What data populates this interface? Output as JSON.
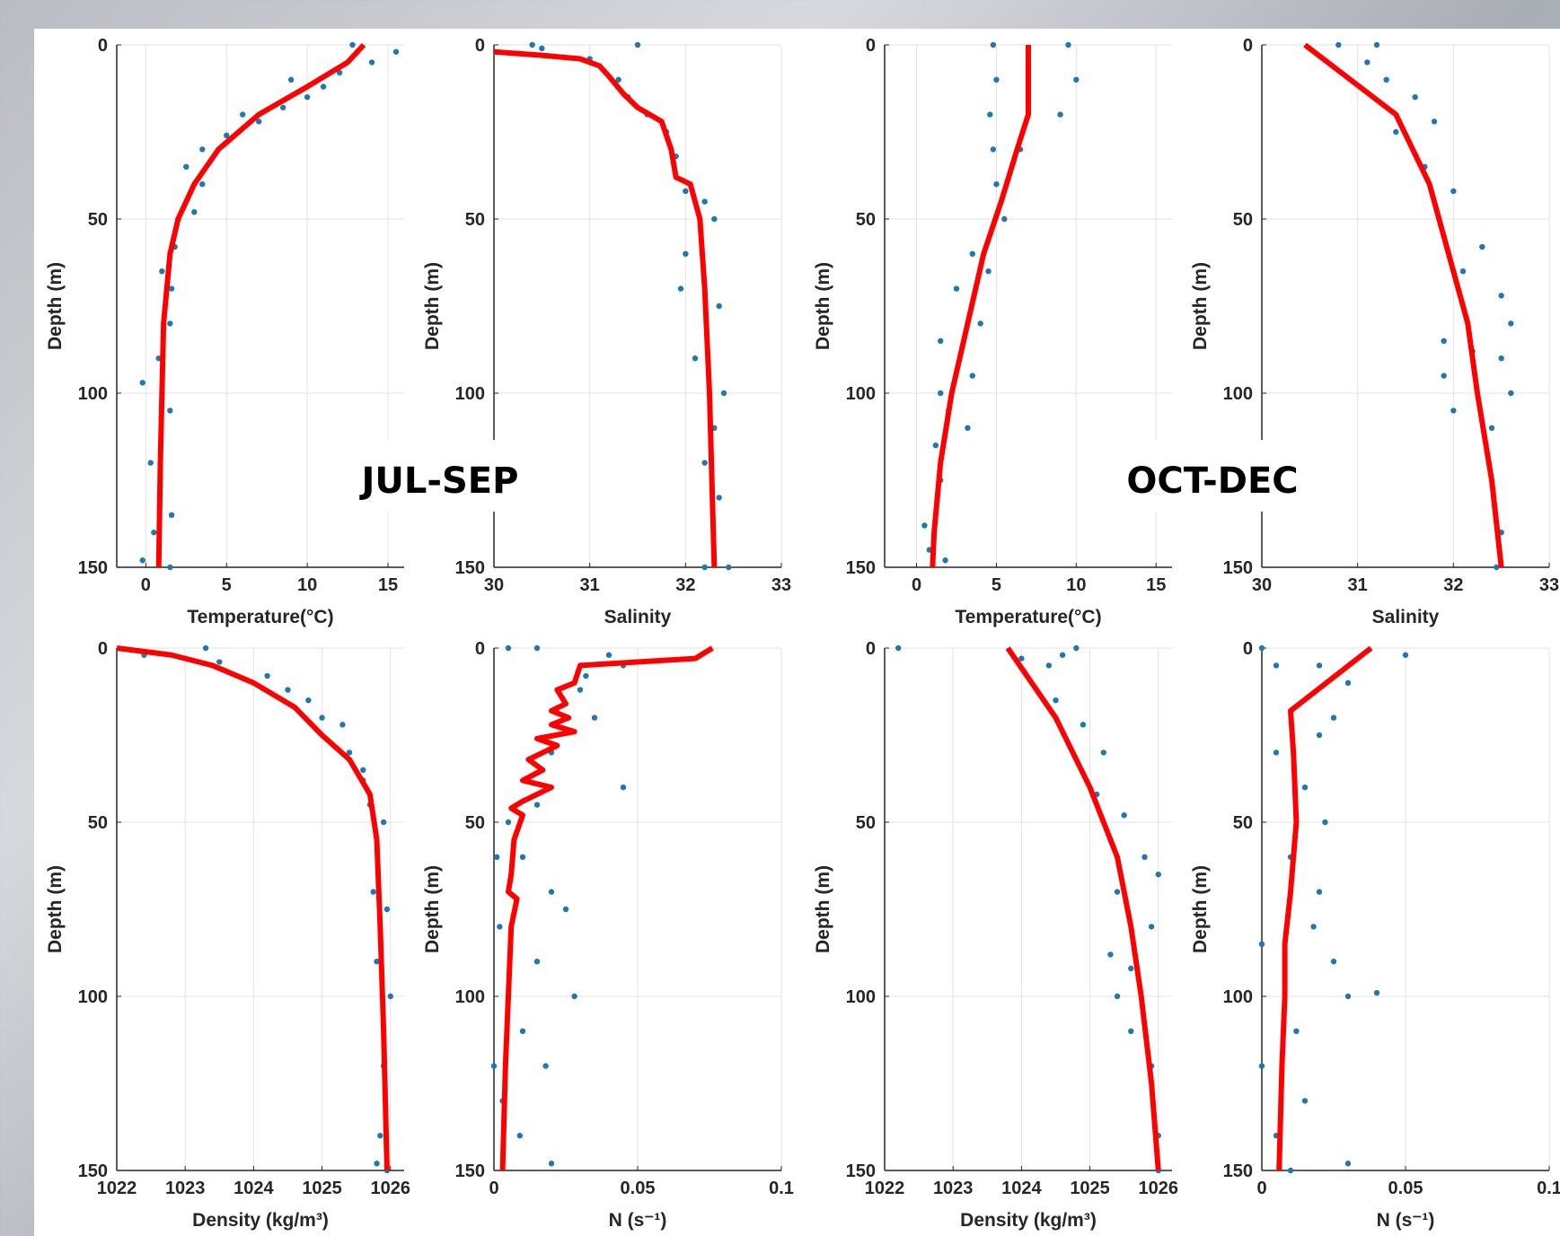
{
  "annotations": [
    "JUL-SEP",
    "OCT-DEC"
  ],
  "chart_data": [
    {
      "type": "scatter",
      "xlabel": "Temperature(°C)",
      "ylabel": "Depth (m)",
      "xlim": [
        -1.8,
        16
      ],
      "xticks": [
        0,
        5,
        10,
        15
      ],
      "ylim": [
        0,
        150
      ],
      "yticks": [
        0,
        50,
        100,
        150
      ],
      "y_inverted": true,
      "grid": true,
      "series": [
        {
          "mode": "markers",
          "color": "#1f77b4",
          "x": [
            12.8,
            15.5,
            14,
            12,
            11,
            10,
            8.5,
            7,
            5,
            3.5,
            2.5,
            3.5,
            3,
            2,
            1.8,
            1,
            1.6,
            1.5,
            0.8,
            -0.2,
            1.5,
            0.3,
            1.6,
            0.5,
            -0.2,
            1.5,
            6,
            9
          ],
          "y": [
            0,
            2,
            5,
            8,
            12,
            15,
            18,
            22,
            26,
            30,
            35,
            40,
            48,
            50,
            58,
            65,
            70,
            80,
            90,
            97,
            105,
            120,
            135,
            140,
            148,
            150,
            20,
            10
          ]
        },
        {
          "mode": "line",
          "color": "#ff0000",
          "x": [
            13.5,
            12.5,
            10,
            7,
            4.5,
            3,
            2,
            1.5,
            1.3,
            1.1,
            1,
            0.9,
            0.8
          ],
          "y": [
            0,
            5,
            12,
            20,
            30,
            40,
            50,
            60,
            70,
            80,
            100,
            120,
            150
          ]
        }
      ]
    },
    {
      "type": "scatter",
      "xlabel": "Salinity",
      "ylabel": "Depth (m)",
      "xlim": [
        30,
        33
      ],
      "xticks": [
        30,
        31,
        32,
        33
      ],
      "ylim": [
        0,
        150
      ],
      "yticks": [
        0,
        50,
        100,
        150
      ],
      "y_inverted": true,
      "grid": true,
      "series": [
        {
          "mode": "markers",
          "color": "#1f77b4",
          "x": [
            30.4,
            30.5,
            31.5,
            31,
            31.3,
            31.4,
            31.6,
            31.8,
            31.9,
            32.0,
            32.2,
            32.3,
            32.0,
            31.95,
            32.35,
            32.1,
            32.4,
            32.2,
            32.35,
            32.2,
            32.45,
            32.3
          ],
          "y": [
            0,
            1,
            0,
            4,
            10,
            15,
            20,
            25,
            32,
            42,
            45,
            50,
            60,
            70,
            75,
            90,
            100,
            120,
            130,
            150,
            150,
            110
          ]
        },
        {
          "mode": "line",
          "color": "#ff0000",
          "x": [
            30,
            30.5,
            30.9,
            31.1,
            31.2,
            31.35,
            31.5,
            31.75,
            31.85,
            31.9,
            32.05,
            32.15,
            32.2,
            32.25,
            32.3
          ],
          "y": [
            2,
            3,
            4,
            6,
            9,
            14,
            18,
            22,
            30,
            38,
            40,
            50,
            70,
            100,
            150
          ]
        }
      ]
    },
    {
      "type": "scatter",
      "xlabel": "Temperature(°C)",
      "ylabel": "Depth (m)",
      "xlim": [
        -2,
        16
      ],
      "xticks": [
        0,
        5,
        10,
        15
      ],
      "ylim": [
        0,
        150
      ],
      "yticks": [
        0,
        50,
        100,
        150
      ],
      "y_inverted": true,
      "grid": true,
      "series": [
        {
          "mode": "markers",
          "color": "#1f77b4",
          "x": [
            4.8,
            5,
            4.6,
            4.8,
            9.5,
            10,
            9,
            6.5,
            5,
            5.5,
            3.5,
            4.5,
            2.5,
            4,
            1.5,
            3.5,
            1.5,
            3.2,
            1.2,
            1.5,
            0.5,
            0.8,
            1.8,
            2
          ],
          "y": [
            0,
            10,
            20,
            30,
            0,
            10,
            20,
            30,
            40,
            50,
            60,
            65,
            70,
            80,
            85,
            95,
            100,
            110,
            115,
            125,
            138,
            145,
            148,
            105
          ]
        },
        {
          "mode": "line",
          "color": "#ff0000",
          "x": [
            7,
            7,
            7,
            6.3,
            5.3,
            4.2,
            3.2,
            2.2,
            1.5,
            1.1,
            1
          ],
          "y": [
            0,
            10,
            20,
            30,
            45,
            60,
            80,
            100,
            120,
            140,
            150
          ]
        }
      ]
    },
    {
      "type": "scatter",
      "xlabel": "Salinity",
      "ylabel": "Depth (m)",
      "xlim": [
        30,
        33
      ],
      "xticks": [
        30,
        31,
        32,
        33
      ],
      "ylim": [
        0,
        150
      ],
      "yticks": [
        0,
        50,
        100,
        150
      ],
      "y_inverted": true,
      "grid": true,
      "series": [
        {
          "mode": "markers",
          "color": "#1f77b4",
          "x": [
            30.8,
            31.2,
            31.1,
            31.3,
            31.6,
            31.4,
            31.8,
            31.7,
            32.0,
            31.9,
            32.3,
            32.1,
            32.5,
            32.6,
            31.9,
            32.5,
            31.9,
            32.6,
            32.0,
            32.4,
            32.5,
            32.45,
            32.2
          ],
          "y": [
            0,
            0,
            5,
            10,
            15,
            25,
            22,
            35,
            42,
            55,
            58,
            65,
            72,
            80,
            85,
            90,
            95,
            100,
            105,
            110,
            140,
            150,
            88
          ]
        },
        {
          "mode": "line",
          "color": "#ff0000",
          "x": [
            30.45,
            31.4,
            31.75,
            31.95,
            32.15,
            32.25,
            32.4,
            32.5
          ],
          "y": [
            0,
            20,
            40,
            60,
            80,
            100,
            125,
            150
          ]
        }
      ]
    },
    {
      "type": "scatter",
      "xlabel": "Density (kg/m³)",
      "ylabel": "Depth (m)",
      "xlim": [
        1022,
        1026.2
      ],
      "xticks": [
        1022,
        1023,
        1024,
        1025,
        1026
      ],
      "ylim": [
        0,
        150
      ],
      "yticks": [
        0,
        50,
        100,
        150
      ],
      "y_inverted": true,
      "grid": true,
      "series": [
        {
          "mode": "markers",
          "color": "#1f77b4",
          "x": [
            1023.3,
            1022.4,
            1023.5,
            1024.2,
            1024.5,
            1024.8,
            1025.0,
            1025.3,
            1025.4,
            1025.6,
            1025.6,
            1025.7,
            1025.9,
            1025.75,
            1025.95,
            1025.8,
            1026.0,
            1025.9,
            1025.85,
            1025.95,
            1025.8
          ],
          "y": [
            0,
            2,
            4,
            8,
            12,
            15,
            20,
            22,
            30,
            35,
            38,
            45,
            50,
            70,
            75,
            90,
            100,
            120,
            140,
            150,
            148
          ]
        },
        {
          "mode": "line",
          "color": "#ff0000",
          "x": [
            1022,
            1022.8,
            1023.4,
            1024,
            1024.6,
            1025.0,
            1025.4,
            1025.7,
            1025.8,
            1025.85,
            1025.9,
            1025.95
          ],
          "y": [
            0,
            2,
            5,
            10,
            17,
            25,
            32,
            42,
            55,
            80,
            110,
            150
          ]
        }
      ]
    },
    {
      "type": "scatter",
      "xlabel": "N (s⁻¹)",
      "ylabel": "Depth (m)",
      "xlim": [
        0,
        0.1
      ],
      "xticks": [
        0,
        0.05,
        0.1
      ],
      "ylim": [
        0,
        150
      ],
      "yticks": [
        0,
        50,
        100,
        150
      ],
      "y_inverted": true,
      "grid": true,
      "series": [
        {
          "mode": "markers",
          "color": "#1f77b4",
          "x": [
            0.005,
            0.015,
            0.04,
            0.045,
            0.032,
            0.03,
            0.035,
            0.045,
            0.02,
            0.015,
            0.005,
            0.01,
            0.02,
            0.025,
            0.002,
            0.015,
            0.028,
            0.01,
            0.018,
            0.003,
            0.009,
            0.02,
            0.0,
            0.001
          ],
          "y": [
            0,
            0,
            2,
            5,
            8,
            12,
            20,
            40,
            30,
            45,
            50,
            60,
            70,
            75,
            80,
            90,
            100,
            110,
            120,
            130,
            140,
            148,
            120,
            60
          ]
        },
        {
          "mode": "line",
          "color": "#ff0000",
          "x": [
            0.076,
            0.07,
            0.03,
            0.028,
            0.022,
            0.025,
            0.02,
            0.026,
            0.02,
            0.028,
            0.015,
            0.022,
            0.012,
            0.017,
            0.01,
            0.02,
            0.01,
            0.006,
            0.01,
            0.007,
            0.006,
            0.005,
            0.008,
            0.006,
            0.005,
            0.004,
            0.003
          ],
          "y": [
            0,
            3,
            5,
            10,
            12,
            16,
            18,
            20,
            22,
            24,
            26,
            28,
            32,
            35,
            38,
            40,
            44,
            46,
            48,
            55,
            65,
            70,
            72,
            80,
            100,
            120,
            150
          ]
        }
      ]
    },
    {
      "type": "scatter",
      "xlabel": "Density (kg/m³)",
      "ylabel": "Depth (m)",
      "xlim": [
        1022,
        1026.2
      ],
      "xticks": [
        1022,
        1023,
        1024,
        1025,
        1026
      ],
      "ylim": [
        0,
        150
      ],
      "yticks": [
        0,
        50,
        100,
        150
      ],
      "y_inverted": true,
      "grid": true,
      "series": [
        {
          "mode": "markers",
          "color": "#1f77b4",
          "x": [
            1024,
            1024.4,
            1024.6,
            1024.8,
            1024.5,
            1024.9,
            1025.2,
            1025.1,
            1025.5,
            1025.3,
            1025.8,
            1026.0,
            1025.4,
            1025.9,
            1025.3,
            1025.6,
            1025.4,
            1025.6,
            1025.9,
            1026.0,
            1026.0,
            1022.2
          ],
          "y": [
            3,
            5,
            2,
            0,
            15,
            22,
            30,
            42,
            48,
            55,
            60,
            65,
            70,
            80,
            88,
            92,
            100,
            110,
            120,
            140,
            150,
            0
          ]
        },
        {
          "mode": "line",
          "color": "#ff0000",
          "x": [
            1023.8,
            1024.5,
            1025.0,
            1025.4,
            1025.6,
            1025.75,
            1025.9,
            1026.0
          ],
          "y": [
            0,
            20,
            40,
            60,
            80,
            100,
            125,
            150
          ]
        }
      ]
    },
    {
      "type": "scatter",
      "xlabel": "N (s⁻¹)",
      "ylabel": "Depth (m)",
      "xlim": [
        0,
        0.1
      ],
      "xticks": [
        0,
        0.05,
        0.1
      ],
      "ylim": [
        0,
        150
      ],
      "yticks": [
        0,
        50,
        100,
        150
      ],
      "y_inverted": true,
      "grid": true,
      "series": [
        {
          "mode": "markers",
          "color": "#1f77b4",
          "x": [
            0.0,
            0.005,
            0.02,
            0.05,
            0.03,
            0.025,
            0.02,
            0.015,
            0.022,
            0.01,
            0.02,
            0.018,
            0.0,
            0.03,
            0.04,
            0.012,
            0.0,
            0.015,
            0.005,
            0.03,
            0.01,
            0.025,
            0.005
          ],
          "y": [
            0,
            5,
            5,
            2,
            10,
            20,
            25,
            40,
            50,
            60,
            70,
            80,
            85,
            100,
            99,
            110,
            120,
            130,
            140,
            148,
            150,
            90,
            30
          ]
        },
        {
          "mode": "line",
          "color": "#ff0000",
          "x": [
            0.038,
            0.01,
            0.011,
            0.012,
            0.01,
            0.008,
            0.008,
            0.007,
            0.006
          ],
          "y": [
            0,
            18,
            30,
            50,
            70,
            85,
            100,
            120,
            150
          ]
        }
      ]
    }
  ]
}
